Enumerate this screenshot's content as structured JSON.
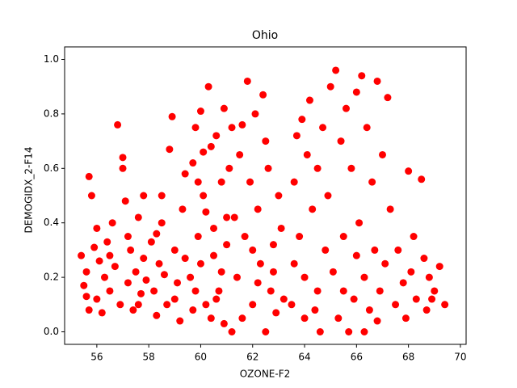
{
  "chart_data": {
    "type": "scatter",
    "title": "Ohio",
    "x_label": "OZONE-F2",
    "y_label": "DEMOGIDX_2-F14",
    "x": [
      55.4,
      55.5,
      55.6,
      55.7,
      55.8,
      55.7,
      55.9,
      56.0,
      56.1,
      56.2,
      56.3,
      56.4,
      56.5,
      56.6,
      56.7,
      56.8,
      56.9,
      57.0,
      57.0,
      57.1,
      57.2,
      57.3,
      57.4,
      57.5,
      57.6,
      57.7,
      57.8,
      57.8,
      57.9,
      56.0,
      55.6,
      56.5,
      57.2,
      57.6,
      58.1,
      58.2,
      58.3,
      58.4,
      58.5,
      58.6,
      58.7,
      58.8,
      58.9,
      59.0,
      59.1,
      59.2,
      59.3,
      59.4,
      58.5,
      59.0,
      58.3,
      59.4,
      59.6,
      59.7,
      59.8,
      59.9,
      60.0,
      60.1,
      60.2,
      60.3,
      60.4,
      60.5,
      60.6,
      60.7,
      60.8,
      60.9,
      61.0,
      61.1,
      61.2,
      59.8,
      60.0,
      60.2,
      60.5,
      60.8,
      61.0,
      59.7,
      60.4,
      60.9,
      61.2,
      59.9,
      60.6,
      60.1,
      61.4,
      61.5,
      61.6,
      61.7,
      61.8,
      61.9,
      62.0,
      62.1,
      62.2,
      62.3,
      62.4,
      62.5,
      62.6,
      62.7,
      62.8,
      62.9,
      63.0,
      61.6,
      62.0,
      62.5,
      61.3,
      62.2,
      62.8,
      63.1,
      63.2,
      63.5,
      63.6,
      63.7,
      63.8,
      63.9,
      64.0,
      64.1,
      64.2,
      64.3,
      64.4,
      64.5,
      64.6,
      64.7,
      64.8,
      64.9,
      65.0,
      64.0,
      63.6,
      64.5,
      65.1,
      65.2,
      65.3,
      65.4,
      65.5,
      65.6,
      65.7,
      65.8,
      65.9,
      66.0,
      66.1,
      66.2,
      66.3,
      66.4,
      66.5,
      66.6,
      66.7,
      66.8,
      66.9,
      67.0,
      67.1,
      67.2,
      67.3,
      66.3,
      65.5,
      66.0,
      66.8,
      67.5,
      67.6,
      67.8,
      67.9,
      68.0,
      68.1,
      68.3,
      68.5,
      68.6,
      68.7,
      68.8,
      69.0,
      69.2,
      69.4,
      68.9,
      68.2
    ],
    "series": [
      {
        "color": "#ff0000",
        "values": [
          0.28,
          0.17,
          0.22,
          0.57,
          0.5,
          0.08,
          0.31,
          0.12,
          0.26,
          0.07,
          0.2,
          0.33,
          0.15,
          0.4,
          0.24,
          0.76,
          0.1,
          0.6,
          0.64,
          0.48,
          0.18,
          0.3,
          0.08,
          0.22,
          0.42,
          0.14,
          0.5,
          0.27,
          0.19,
          0.38,
          0.13,
          0.28,
          0.35,
          0.1,
          0.33,
          0.15,
          0.06,
          0.25,
          0.4,
          0.21,
          0.1,
          0.67,
          0.79,
          0.3,
          0.18,
          0.04,
          0.45,
          0.27,
          0.5,
          0.12,
          0.36,
          0.58,
          0.2,
          0.62,
          0.75,
          0.35,
          0.81,
          0.5,
          0.1,
          0.9,
          0.68,
          0.28,
          0.72,
          0.15,
          0.55,
          0.03,
          0.42,
          0.6,
          0,
          0.15,
          0.25,
          0.44,
          0.38,
          0.22,
          0.32,
          0.08,
          0.05,
          0.82,
          0.75,
          0.55,
          0.12,
          0.66,
          0.2,
          0.65,
          0.76,
          0.35,
          0.92,
          0.55,
          0.1,
          0.8,
          0.45,
          0.25,
          0.87,
          0,
          0.6,
          0.15,
          0.32,
          0.07,
          0.5,
          0.05,
          0.3,
          0.7,
          0.42,
          0.18,
          0.22,
          0.38,
          0.12,
          0.1,
          0.55,
          0.72,
          0.35,
          0.78,
          0.2,
          0.65,
          0.85,
          0.45,
          0.08,
          0.6,
          0,
          0.75,
          0.3,
          0.5,
          0.9,
          0.05,
          0.25,
          0.15,
          0.22,
          0.96,
          0.05,
          0.7,
          0.35,
          0.82,
          0,
          0.6,
          0.12,
          0.88,
          0.4,
          0.94,
          0.2,
          0.75,
          0.08,
          0.55,
          0.3,
          0.92,
          0.15,
          0.65,
          0.25,
          0.86,
          0.45,
          0,
          0.15,
          0.28,
          0.04,
          0.1,
          0.3,
          0.18,
          0.05,
          0.59,
          0.22,
          0.12,
          0.56,
          0.27,
          0.08,
          0.2,
          0.15,
          0.24,
          0.1,
          0.12,
          0.35
        ]
      }
    ],
    "xlim": [
      54.76,
      70.22
    ],
    "ylim": [
      -0.046,
      1.046
    ],
    "xticks": [
      56,
      58,
      60,
      62,
      64,
      66,
      68,
      70
    ],
    "yticks": [
      {
        "value": 0,
        "label": "0.0"
      },
      0.2,
      0.4,
      0.6,
      0.8,
      {
        "value": 1,
        "label": "1.0"
      }
    ]
  }
}
